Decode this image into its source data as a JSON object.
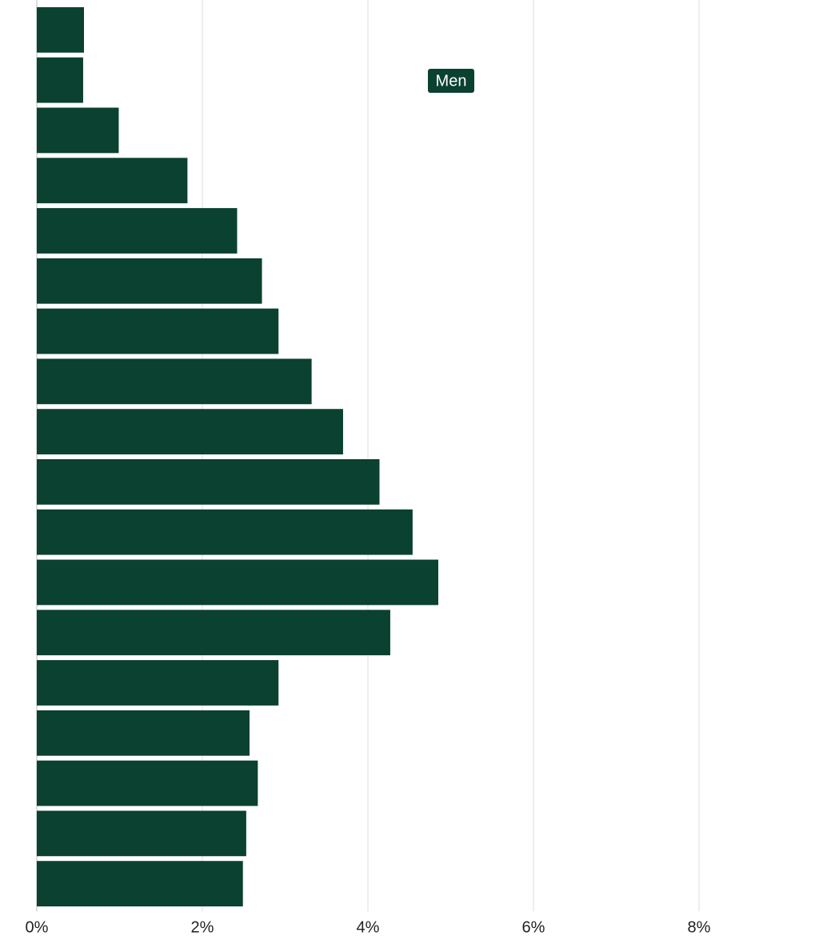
{
  "chart_data": {
    "type": "barh",
    "categories": [
      null,
      null,
      null,
      null,
      null,
      null,
      null,
      null,
      null,
      null,
      null,
      null,
      null,
      null,
      null,
      null,
      null,
      null
    ],
    "series": [
      {
        "name": "Men",
        "color": "#0a4130",
        "values": [
          0.57,
          0.56,
          0.99,
          1.82,
          2.42,
          2.72,
          2.92,
          3.32,
          3.7,
          4.14,
          4.54,
          4.85,
          4.27,
          2.92,
          2.57,
          2.67,
          2.53,
          2.49
        ]
      }
    ],
    "xlim": [
      0,
      9
    ],
    "xticks": [
      {
        "value": 0,
        "label": "0%"
      },
      {
        "value": 2,
        "label": "2%"
      },
      {
        "value": 4,
        "label": "4%"
      },
      {
        "value": 6,
        "label": "6%"
      },
      {
        "value": 8,
        "label": "8%"
      }
    ],
    "grid": true
  }
}
